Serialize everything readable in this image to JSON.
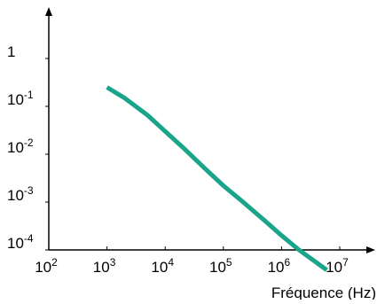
{
  "chart_data": {
    "type": "line",
    "title": "",
    "xlabel": "Fréquence (Hz)",
    "ylabel": "",
    "x_scale": "log",
    "y_scale": "log",
    "xlim": [
      100,
      10000000
    ],
    "ylim": [
      0.0001,
      1
    ],
    "grid": false,
    "legend": "none",
    "x_ticks": [
      {
        "value": 100,
        "base": "10",
        "exp": "2"
      },
      {
        "value": 1000,
        "base": "10",
        "exp": "3"
      },
      {
        "value": 10000,
        "base": "10",
        "exp": "4"
      },
      {
        "value": 100000,
        "base": "10",
        "exp": "5"
      },
      {
        "value": 1000000,
        "base": "10",
        "exp": "6"
      },
      {
        "value": 10000000,
        "base": "10",
        "exp": "7"
      }
    ],
    "y_ticks": [
      {
        "value": 1,
        "base": "1",
        "exp": ""
      },
      {
        "value": 0.1,
        "base": "10",
        "exp": "-1"
      },
      {
        "value": 0.01,
        "base": "10",
        "exp": "-2"
      },
      {
        "value": 0.001,
        "base": "10",
        "exp": "-3"
      },
      {
        "value": 0.0001,
        "base": "10",
        "exp": "-4"
      }
    ],
    "series": [
      {
        "color": "#1aa58a",
        "x": [
          1000,
          2000,
          5000,
          10000,
          20000,
          50000,
          100000,
          200000,
          500000,
          1000000,
          2000000,
          6000000
        ],
        "y": [
          0.25,
          0.15,
          0.065,
          0.03,
          0.014,
          0.0048,
          0.0022,
          0.0011,
          0.00042,
          0.0002,
          0.0001,
          3.8e-05
        ]
      }
    ]
  }
}
